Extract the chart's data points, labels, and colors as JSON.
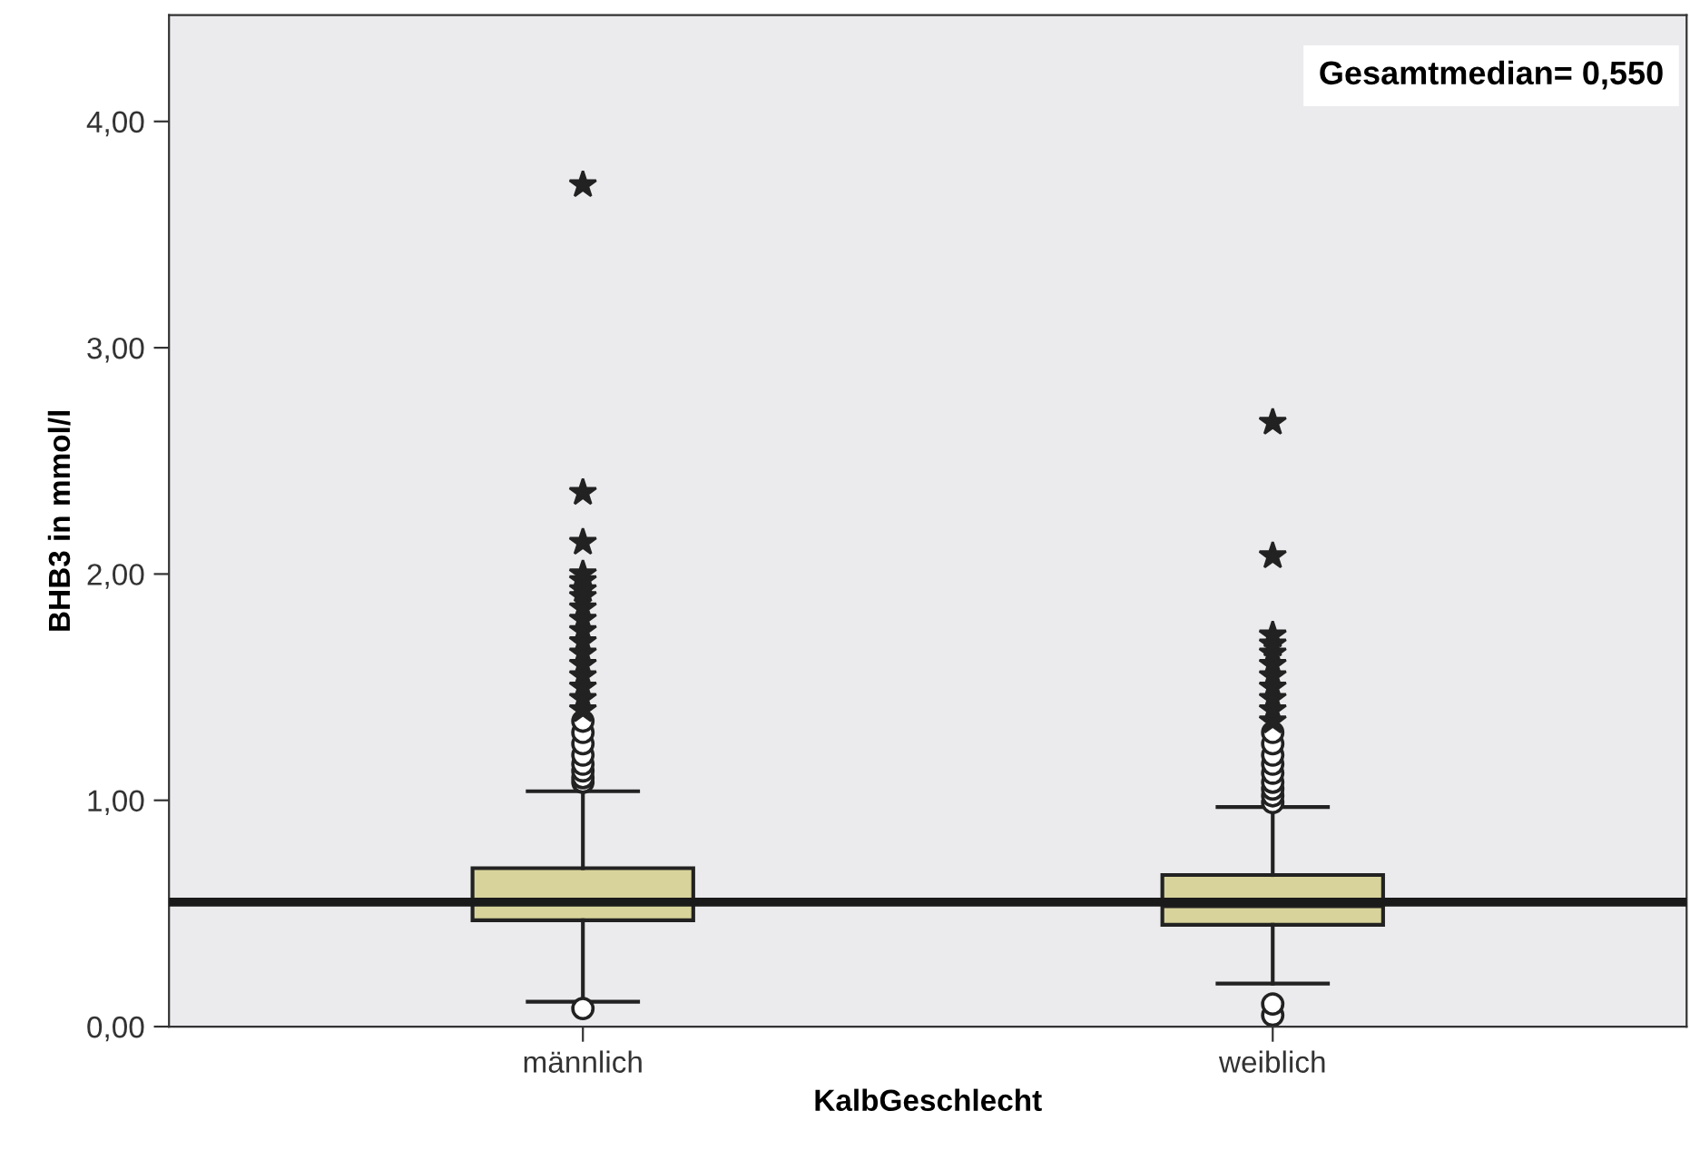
{
  "chart_data": {
    "type": "box",
    "xlabel": "KalbGeschlecht",
    "ylabel": "BHB3 in mmol/l",
    "categories": [
      "männlich",
      "weiblich"
    ],
    "boxes": [
      {
        "low": 0.11,
        "q1": 0.47,
        "median": 0.55,
        "q3": 0.7,
        "high": 1.04,
        "outliers": [
          0.08,
          1.08,
          1.1,
          1.13,
          1.16,
          1.2,
          1.25,
          1.3,
          1.35,
          1.4,
          1.45,
          1.5,
          1.55,
          1.6,
          1.65,
          1.7,
          1.75,
          1.8,
          1.85,
          1.9,
          1.93,
          1.97,
          2.0,
          2.14,
          2.36,
          3.72
        ]
      },
      {
        "low": 0.19,
        "q1": 0.45,
        "median": 0.54,
        "q3": 0.67,
        "high": 0.97,
        "outliers": [
          0.05,
          0.1,
          0.99,
          1.02,
          1.05,
          1.08,
          1.12,
          1.16,
          1.2,
          1.25,
          1.3,
          1.35,
          1.4,
          1.45,
          1.5,
          1.55,
          1.6,
          1.65,
          1.69,
          1.73,
          2.08,
          2.67
        ]
      }
    ],
    "color": "#d8d39a",
    "ylim": [
      0,
      4.47
    ],
    "yticks": [
      {
        "value": 0,
        "label": "0,00"
      },
      {
        "value": 1,
        "label": "1,00"
      },
      {
        "value": 2,
        "label": "2,00"
      },
      {
        "value": 3,
        "label": "3,00"
      },
      {
        "value": 4,
        "label": "4,00"
      }
    ],
    "ref_lines": [
      {
        "axis": "y",
        "value": 0.55,
        "label": "Gesamtmedian= 0,550",
        "color": "#1a1a1a"
      }
    ],
    "grid": false,
    "legend": false
  }
}
